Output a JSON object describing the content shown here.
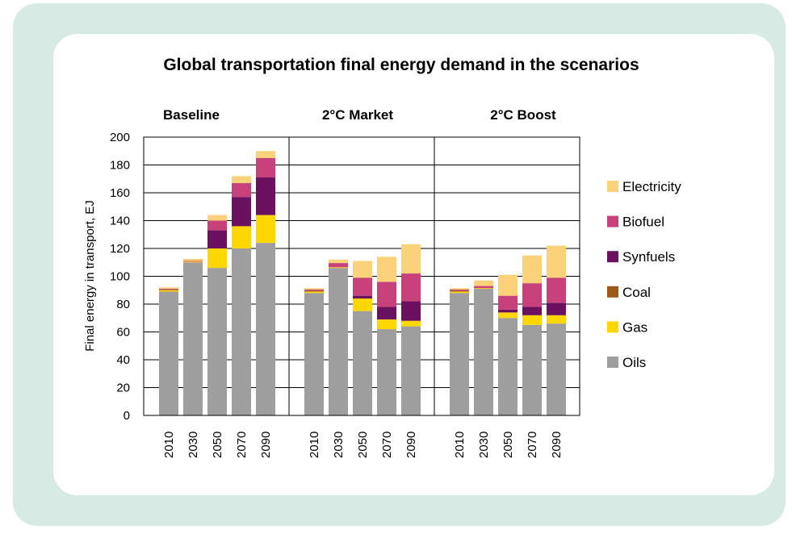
{
  "chart_data": {
    "type": "bar",
    "stacked": true,
    "title": "Global transportation final energy demand in the scenarios",
    "ylabel": "Final energy in transport, EJ",
    "ylim": [
      0,
      200
    ],
    "yticks": [
      0,
      20,
      40,
      60,
      80,
      100,
      120,
      140,
      160,
      180,
      200
    ],
    "stack_order": [
      "Oils",
      "Gas",
      "Coal",
      "Synfuels",
      "Biofuel",
      "Electricity"
    ],
    "legend_order": [
      "Electricity",
      "Biofuel",
      "Synfuels",
      "Coal",
      "Gas",
      "Oils"
    ],
    "legend_position": "right",
    "colors": {
      "Oils": "#9e9e9e",
      "Gas": "#ffd700",
      "Coal": "#9c5a14",
      "Synfuels": "#6b1160",
      "Biofuel": "#c8417a",
      "Electricity": "#fbd27a"
    },
    "panels": [
      {
        "name": "Baseline",
        "categories": [
          "2010",
          "2030",
          "2050",
          "2070",
          "2090"
        ],
        "series": [
          {
            "name": "Oils",
            "values": [
              89,
              110,
              106,
              120,
              124
            ]
          },
          {
            "name": "Gas",
            "values": [
              1,
              0.5,
              14,
              16,
              20
            ]
          },
          {
            "name": "Coal",
            "values": [
              0.5,
              0,
              0,
              0,
              0
            ]
          },
          {
            "name": "Synfuels",
            "values": [
              0,
              0,
              13,
              21,
              27
            ]
          },
          {
            "name": "Biofuel",
            "values": [
              0.5,
              0.5,
              7,
              10,
              14
            ]
          },
          {
            "name": "Electricity",
            "values": [
              1,
              1.5,
              4,
              5,
              5
            ]
          }
        ]
      },
      {
        "name": "2°C Market",
        "categories": [
          "2010",
          "2030",
          "2050",
          "2070",
          "2090"
        ],
        "series": [
          {
            "name": "Oils",
            "values": [
              88,
              106,
              75,
              62,
              64
            ]
          },
          {
            "name": "Gas",
            "values": [
              1,
              0.5,
              9,
              7,
              4
            ]
          },
          {
            "name": "Coal",
            "values": [
              0.5,
              0,
              0,
              0,
              0
            ]
          },
          {
            "name": "Synfuels",
            "values": [
              0,
              0,
              2,
              9,
              14
            ]
          },
          {
            "name": "Biofuel",
            "values": [
              1,
              3,
              13,
              18,
              20
            ]
          },
          {
            "name": "Electricity",
            "values": [
              1,
              2.5,
              12,
              18,
              21
            ]
          }
        ]
      },
      {
        "name": "2°C Boost",
        "categories": [
          "2010",
          "2030",
          "2050",
          "2070",
          "2090"
        ],
        "series": [
          {
            "name": "Oils",
            "values": [
              88,
              91,
              70,
              65,
              66
            ]
          },
          {
            "name": "Gas",
            "values": [
              1,
              0.5,
              4,
              7,
              6
            ]
          },
          {
            "name": "Coal",
            "values": [
              0.5,
              0,
              0,
              0,
              0
            ]
          },
          {
            "name": "Synfuels",
            "values": [
              0,
              0,
              2,
              6,
              9
            ]
          },
          {
            "name": "Biofuel",
            "values": [
              1,
              1.5,
              10,
              17,
              18
            ]
          },
          {
            "name": "Electricity",
            "values": [
              1,
              4,
              15,
              20,
              23
            ]
          }
        ]
      }
    ]
  }
}
